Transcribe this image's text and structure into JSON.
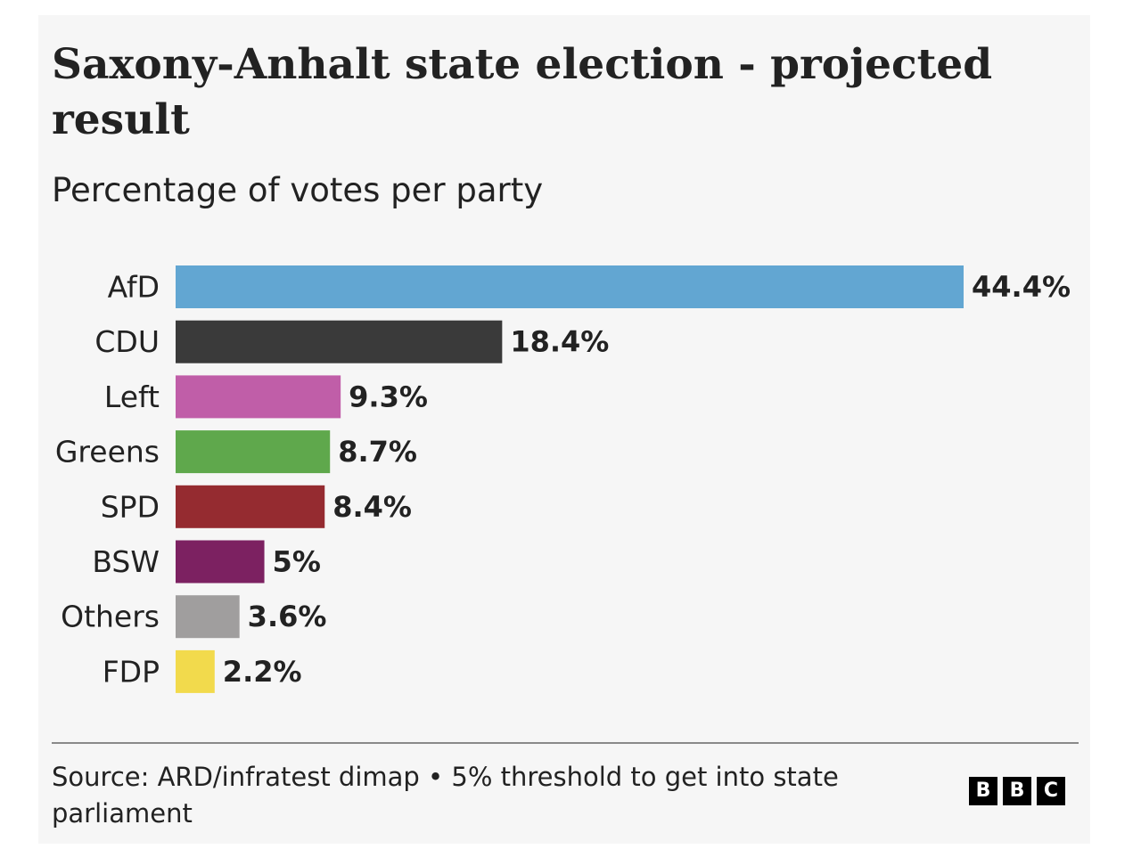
{
  "chart_data": {
    "type": "bar",
    "orientation": "horizontal",
    "title": "Saxony-Anhalt state election - projected result",
    "subtitle": "Percentage of votes per party",
    "categories": [
      "AfD",
      "CDU",
      "Left",
      "Greens",
      "SPD",
      "BSW",
      "Others",
      "FDP"
    ],
    "values": [
      44.4,
      18.4,
      9.3,
      8.7,
      8.4,
      5,
      3.6,
      2.2
    ],
    "value_labels": [
      "44.4%",
      "18.4%",
      "9.3%",
      "8.7%",
      "8.4%",
      "5%",
      "3.6%",
      "2.2%"
    ],
    "colors": [
      "#62a6d2",
      "#3a3a3a",
      "#c05ea8",
      "#5fa84c",
      "#952b30",
      "#7c2161",
      "#a09e9e",
      "#f2da4c"
    ],
    "xlim": [
      0,
      44.4
    ],
    "grid": false,
    "legend": "none"
  },
  "footer": {
    "source": "Source: ARD/infratest dimap • 5% threshold to get into state parliament",
    "logo_letters": [
      "B",
      "B",
      "C"
    ]
  },
  "colors": {
    "background": "#f6f6f6",
    "text": "#222222",
    "divider": "#8a8a8a"
  }
}
